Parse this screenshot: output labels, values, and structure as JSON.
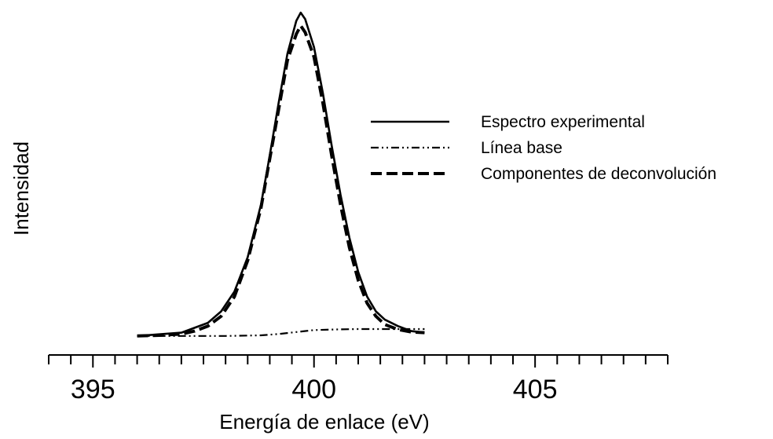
{
  "chart_data": {
    "type": "line",
    "title": "",
    "xlabel": "Energía de enlace (eV)",
    "ylabel": "Intensidad",
    "xlim": [
      394,
      408
    ],
    "ylim": [
      0,
      1.0
    ],
    "x_major_ticks": [
      395,
      400,
      405
    ],
    "x_tick_labels": [
      "395",
      "400",
      "405"
    ],
    "x_minor_tick_step": 0.5,
    "y_axis_visible": false,
    "grid": false,
    "legend_position": "right",
    "series": [
      {
        "name": "Espectro experimental",
        "style": "solid",
        "color": "#000000",
        "x": [
          396.0,
          396.5,
          397.0,
          397.3,
          397.6,
          397.9,
          398.2,
          398.5,
          398.8,
          399.0,
          399.2,
          399.4,
          399.6,
          399.7,
          399.8,
          400.0,
          400.2,
          400.4,
          400.6,
          400.8,
          401.0,
          401.2,
          401.4,
          401.6,
          401.9,
          402.2,
          402.5
        ],
        "y": [
          0.01,
          0.015,
          0.02,
          0.035,
          0.05,
          0.085,
          0.145,
          0.25,
          0.41,
          0.56,
          0.72,
          0.87,
          0.97,
          0.995,
          0.975,
          0.89,
          0.75,
          0.59,
          0.44,
          0.31,
          0.205,
          0.13,
          0.085,
          0.06,
          0.04,
          0.025,
          0.02
        ]
      },
      {
        "name": "Línea base",
        "style": "dashdotdot",
        "color": "#000000",
        "x": [
          396.0,
          397.0,
          398.0,
          398.8,
          399.2,
          399.6,
          400.0,
          400.5,
          401.0,
          401.5,
          402.0,
          402.5
        ],
        "y": [
          0.01,
          0.01,
          0.01,
          0.012,
          0.016,
          0.022,
          0.028,
          0.03,
          0.031,
          0.031,
          0.031,
          0.031
        ]
      },
      {
        "name": "Componentes de deconvolución",
        "style": "dashed",
        "color": "#000000",
        "x": [
          396.0,
          396.5,
          397.0,
          397.3,
          397.6,
          397.9,
          398.2,
          398.5,
          398.8,
          399.0,
          399.2,
          399.4,
          399.6,
          399.7,
          399.8,
          400.0,
          400.2,
          400.4,
          400.6,
          400.8,
          401.0,
          401.2,
          401.4,
          401.6,
          401.9,
          402.2,
          402.5
        ],
        "y": [
          0.01,
          0.012,
          0.016,
          0.025,
          0.04,
          0.07,
          0.13,
          0.24,
          0.4,
          0.55,
          0.7,
          0.85,
          0.93,
          0.955,
          0.935,
          0.86,
          0.72,
          0.56,
          0.41,
          0.28,
          0.18,
          0.11,
          0.07,
          0.045,
          0.03,
          0.022,
          0.02
        ]
      }
    ]
  }
}
